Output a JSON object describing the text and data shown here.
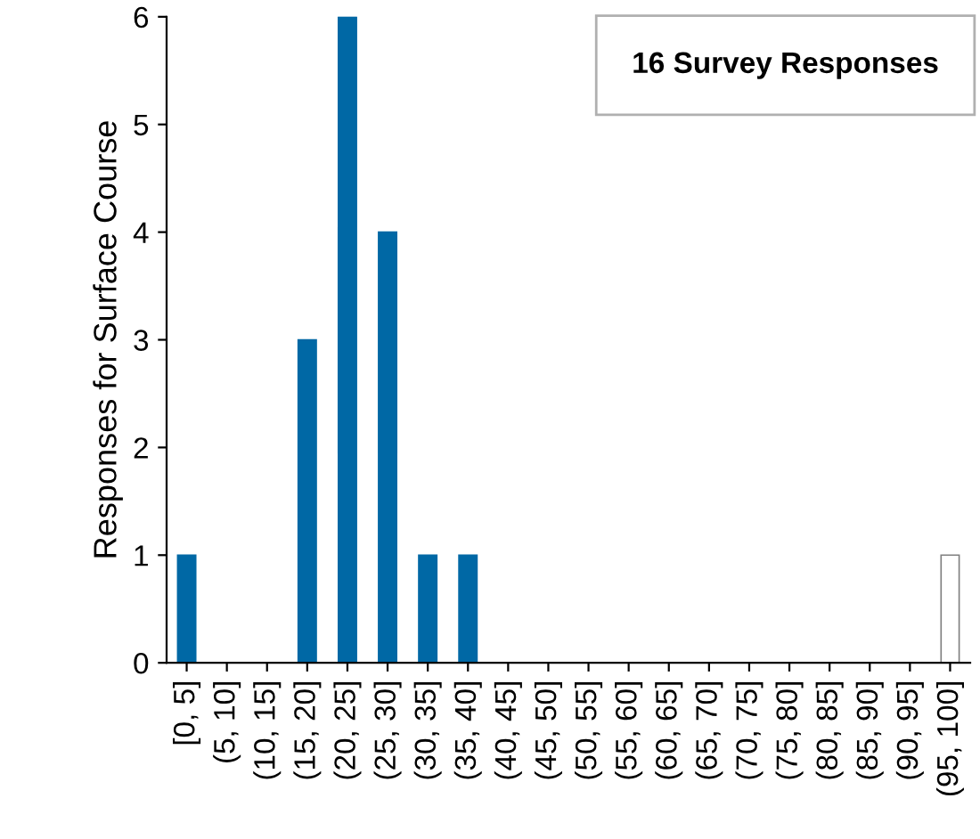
{
  "chart_data": {
    "type": "bar",
    "ylabel": "Responses for Surface Course",
    "categories": [
      "[0, 5]",
      "(5, 10]",
      "(10, 15]",
      "(15, 20]",
      "(20, 25]",
      "(25, 30]",
      "(30, 35]",
      "(35, 40]",
      "(40, 45]",
      "(45, 50]",
      "(50, 55]",
      "(55, 60]",
      "(60, 65]",
      "(65, 70]",
      "(70, 75]",
      "(75, 80]",
      "(80, 85]",
      "(85, 90]",
      "(90, 95]",
      "(95, 100]"
    ],
    "values": [
      1,
      0,
      0,
      3,
      6,
      4,
      1,
      1,
      0,
      0,
      0,
      0,
      0,
      0,
      0,
      0,
      0,
      0,
      0,
      1
    ],
    "colors": [
      "#0068a5",
      "#0068a5",
      "#0068a5",
      "#0068a5",
      "#0068a5",
      "#0068a5",
      "#0068a5",
      "#0068a5",
      "#0068a5",
      "#0068a5",
      "#0068a5",
      "#0068a5",
      "#0068a5",
      "#0068a5",
      "#0068a5",
      "#0068a5",
      "#0068a5",
      "#0068a5",
      "#0068a5",
      "#ffffff"
    ],
    "ylim": [
      0,
      6
    ],
    "yticks": [
      0,
      1,
      2,
      3,
      4,
      5,
      6
    ],
    "grid": false,
    "legend": false,
    "annotations": [
      "16 Survey Responses"
    ]
  }
}
